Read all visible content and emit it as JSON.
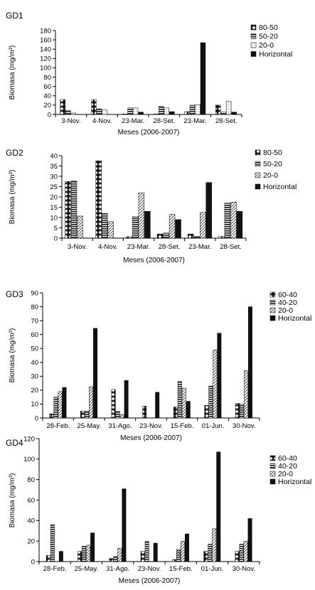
{
  "figure": {
    "panels": [
      {
        "label": "GD1"
      },
      {
        "label": "GD2"
      },
      {
        "label": "GD3"
      },
      {
        "label": "GD4"
      }
    ]
  },
  "chart_data": [
    {
      "type": "bar",
      "panel": "GD1",
      "categories": [
        "3-Nov.",
        "4-Nov.",
        "23-Mar.",
        "28-Set.",
        "23-Mar.",
        "28-Set."
      ],
      "ylabel": "Biomasa (mg/m³)",
      "xlabel": "Meses (2006-2007)",
      "ylim": [
        0,
        180
      ],
      "yticks": [
        0,
        20,
        40,
        60,
        80,
        100,
        120,
        140,
        160,
        180
      ],
      "grid": false,
      "legend_position": "right",
      "series": [
        {
          "name": "80-50",
          "pattern": "diamond",
          "values": [
            32,
            32,
            1,
            1,
            6,
            20
          ]
        },
        {
          "name": "50-20",
          "pattern": "hstripe",
          "values": [
            9,
            12,
            14,
            17,
            20,
            5
          ]
        },
        {
          "name": "20-0",
          "pattern": "light",
          "values": [
            3,
            10,
            14,
            14,
            21,
            28
          ]
        },
        {
          "name": "Horizontal",
          "pattern": "solid",
          "values": [
            0,
            0,
            5,
            6,
            154,
            5
          ]
        }
      ]
    },
    {
      "type": "bar",
      "panel": "GD2",
      "categories": [
        "3-Nov.",
        "4-Nov.",
        "23-Mar.",
        "28-Set.",
        "23-Mar.",
        "28-Set."
      ],
      "ylabel": "Biomasa (mg/m³)",
      "xlabel": "Meses (2006-2007)",
      "ylim": [
        0,
        40
      ],
      "yticks": [
        0,
        5,
        10,
        15,
        20,
        25,
        30,
        35,
        40
      ],
      "grid": false,
      "legend_position": "right",
      "series": [
        {
          "name": "80-50",
          "pattern": "diamond",
          "values": [
            27.5,
            37.5,
            0.7,
            2,
            2,
            0.8
          ]
        },
        {
          "name": "50-20",
          "pattern": "hstripe",
          "values": [
            27.7,
            12,
            10.5,
            2.5,
            0.8,
            17
          ]
        },
        {
          "name": "20-0",
          "pattern": "diag",
          "values": [
            10.7,
            8,
            22,
            11.5,
            12.5,
            17.5
          ]
        },
        {
          "name": "Horizontal",
          "pattern": "solid",
          "values": [
            0,
            0,
            13,
            9,
            27,
            13
          ]
        }
      ]
    },
    {
      "type": "bar",
      "panel": "GD3",
      "categories": [
        "28-Feb.",
        "25-May.",
        "31-Ago.",
        "23-Nov.",
        "15-Feb.",
        "01-Jun.",
        "30-Nov."
      ],
      "ylabel": "Biomasa (mg/m³)",
      "xlabel": "Meses (2006-2007)",
      "ylim": [
        0,
        90
      ],
      "yticks": [
        0,
        10,
        20,
        30,
        40,
        50,
        60,
        70,
        80,
        90
      ],
      "grid": false,
      "legend_position": "right",
      "series": [
        {
          "name": "60-40",
          "pattern": "diamond",
          "values": [
            3,
            5,
            20.5,
            8.5,
            8,
            9,
            10.5
          ]
        },
        {
          "name": "40-20",
          "pattern": "hstripe",
          "values": [
            15,
            5,
            5,
            0,
            26.5,
            23,
            10
          ]
        },
        {
          "name": "20-0",
          "pattern": "diag",
          "values": [
            19,
            22.5,
            2.5,
            0,
            21.5,
            49,
            34
          ]
        },
        {
          "name": "Horizontal",
          "pattern": "solid",
          "values": [
            22,
            64.5,
            27,
            18.5,
            12,
            61,
            80
          ]
        }
      ]
    },
    {
      "type": "bar",
      "panel": "GD4",
      "categories": [
        "28-Feb.",
        "25-May.",
        "31-Ago.",
        "23-Nov.",
        "15-Feb.",
        "01-Jun.",
        "30-Nov."
      ],
      "ylabel": "Biomasa (mg/m³)",
      "xlabel": "Meses (2006-2007)",
      "ylim": [
        0,
        120
      ],
      "yticks": [
        0,
        20,
        40,
        60,
        80,
        100,
        120
      ],
      "grid": false,
      "legend_position": "right",
      "series": [
        {
          "name": "60-40",
          "pattern": "diamond",
          "values": [
            6,
            10,
            3,
            10,
            2,
            10,
            10
          ]
        },
        {
          "name": "40-20",
          "pattern": "hstripe",
          "values": [
            36,
            15,
            5,
            20,
            12,
            17,
            17
          ]
        },
        {
          "name": "20-0",
          "pattern": "diag",
          "values": [
            0,
            16,
            13,
            0,
            20,
            32,
            20
          ]
        },
        {
          "name": "Horizontal",
          "pattern": "solid",
          "values": [
            10,
            28,
            71,
            18,
            27,
            107,
            42
          ]
        }
      ]
    }
  ]
}
